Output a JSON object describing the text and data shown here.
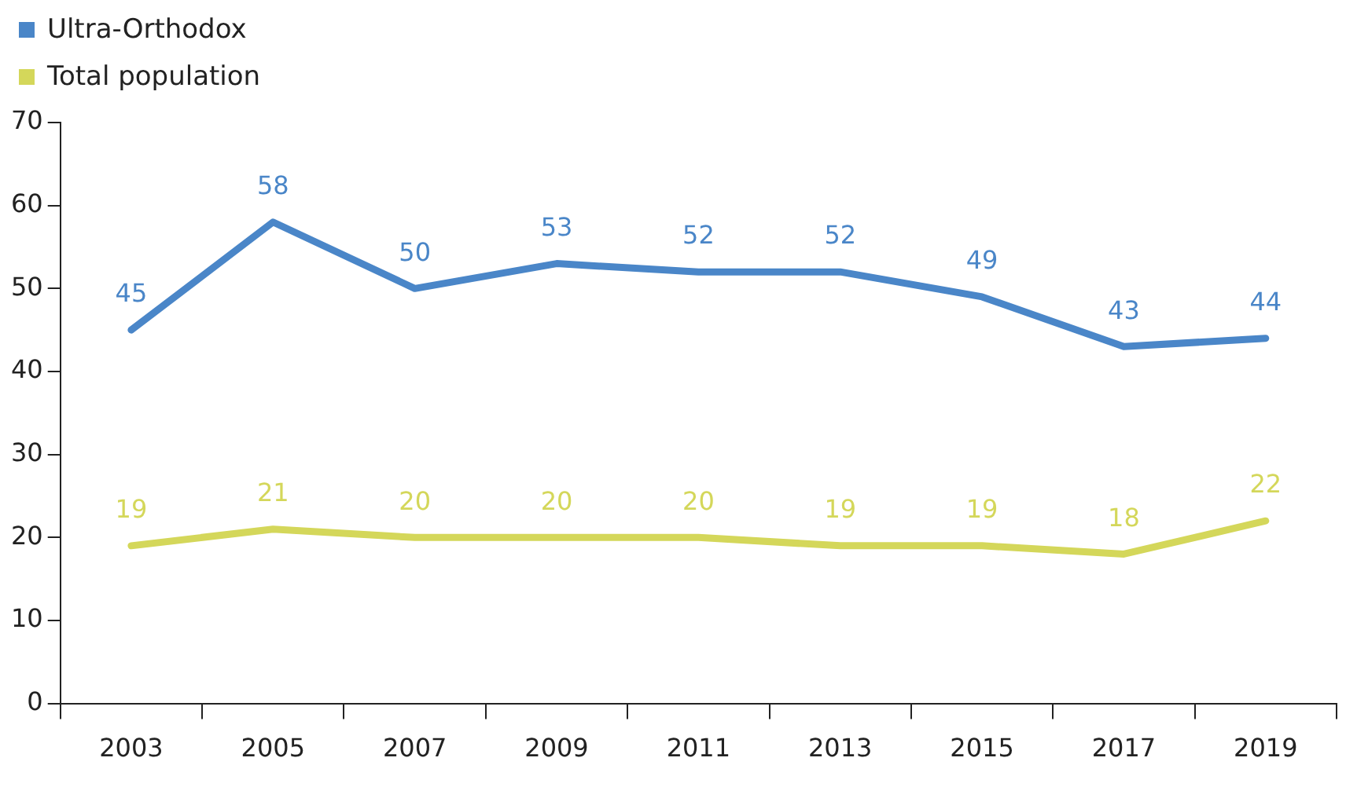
{
  "chart_data": {
    "type": "line",
    "categories": [
      "2003",
      "2005",
      "2007",
      "2009",
      "2011",
      "2013",
      "2015",
      "2017",
      "2019"
    ],
    "series": [
      {
        "name": "Ultra-Orthodox",
        "color": "#4a86c8",
        "values": [
          45,
          58,
          50,
          53,
          52,
          52,
          49,
          43,
          44
        ]
      },
      {
        "name": "Total population",
        "color": "#d4d75a",
        "values": [
          19,
          21,
          20,
          20,
          20,
          19,
          19,
          18,
          22
        ]
      }
    ],
    "ylim": [
      0,
      70
    ],
    "yticks": [
      0,
      10,
      20,
      30,
      40,
      50,
      60,
      70
    ],
    "grid": false,
    "legend": "top left",
    "marker": "none",
    "line_style": "solid",
    "data_labels": true
  }
}
